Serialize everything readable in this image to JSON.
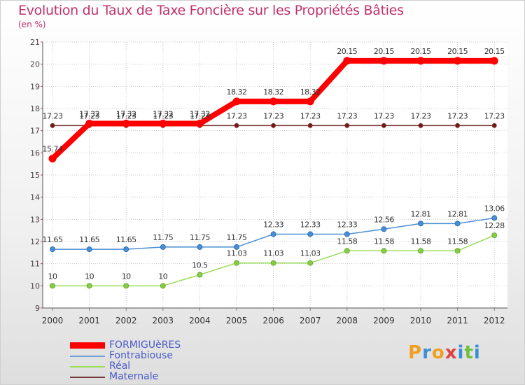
{
  "chart_data": {
    "type": "line",
    "title": "Evolution du Taux de Taxe Foncière sur les Propriétés Bâties",
    "unit_label": "(en %)",
    "x": [
      "2000",
      "2001",
      "2002",
      "2003",
      "2004",
      "2005",
      "2006",
      "2007",
      "2008",
      "2009",
      "2010",
      "2011",
      "2012"
    ],
    "ylim": [
      9,
      21
    ],
    "yticks": [
      "9",
      "10",
      "11",
      "12",
      "13",
      "14",
      "15",
      "16",
      "17",
      "18",
      "19",
      "20",
      "21"
    ],
    "series": [
      {
        "name": "Maternale",
        "color": "#7a3b3b",
        "values": [
          17.23,
          17.23,
          17.23,
          17.23,
          17.23,
          17.23,
          17.23,
          17.23,
          17.23,
          17.23,
          17.23,
          17.23,
          17.23
        ],
        "labels": [
          "17.23",
          "17.23",
          "17.23",
          "17.23",
          "17.23",
          "17.23",
          "17.23",
          "17.23",
          "17.23",
          "17.23",
          "17.23",
          "17.23",
          "17.23"
        ]
      },
      {
        "name": "FORMIGUèRES",
        "color": "#ff0000",
        "values": [
          15.74,
          17.32,
          17.32,
          17.32,
          17.32,
          18.32,
          18.32,
          18.32,
          20.15,
          20.15,
          20.15,
          20.15,
          20.15
        ],
        "labels": [
          "15.74",
          "17.32",
          "17.32",
          "17.32",
          "17.32",
          "18.32",
          "18.32",
          "18.32",
          "20.15",
          "20.15",
          "20.15",
          "20.15",
          "20.15"
        ]
      },
      {
        "name": "Fontrabiouse",
        "color": "#4a8fd4",
        "values": [
          11.65,
          11.65,
          11.65,
          11.75,
          11.75,
          11.75,
          12.33,
          12.33,
          12.33,
          12.56,
          12.81,
          12.81,
          13.06
        ],
        "labels": [
          "11.65",
          "11.65",
          "11.65",
          "11.75",
          "11.75",
          "11.75",
          "12.33",
          "12.33",
          "12.33",
          "12.56",
          "12.81",
          "12.81",
          "13.06"
        ]
      },
      {
        "name": "Réal",
        "color": "#99dd55",
        "values": [
          10,
          10,
          10,
          10,
          10.5,
          11.03,
          11.03,
          11.03,
          11.58,
          11.58,
          11.58,
          11.58,
          12.28
        ],
        "labels": [
          "10",
          "10",
          "10",
          "10",
          "10.5",
          "11.03",
          "11.03",
          "11.03",
          "11.58",
          "11.58",
          "11.58",
          "11.58",
          "12.28"
        ]
      }
    ],
    "legend": [
      {
        "name": "FORMIGUèRES",
        "color": "#ff0000"
      },
      {
        "name": "Fontrabiouse",
        "color": "#6fa0d8"
      },
      {
        "name": "Réal",
        "color": "#99dd55"
      },
      {
        "name": "Maternale",
        "color": "#7a3b3b"
      }
    ]
  },
  "logo": {
    "letters": [
      "P",
      "r",
      "o",
      "x",
      "i",
      "t",
      "i"
    ],
    "colors": [
      "#f0a020",
      "#3a90d8",
      "#f0a020",
      "#e04040",
      "#3a90d8",
      "#70c040",
      "#3a90d8"
    ]
  }
}
